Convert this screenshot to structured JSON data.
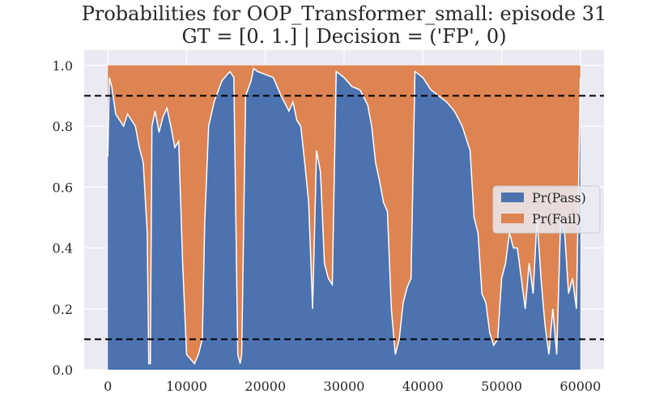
{
  "chart_data": {
    "type": "area",
    "title": "Probabilities for OOP_Transformer_small: episode 31",
    "subtitle": "GT = [0. 1.] | Decision = ('FP', 0)",
    "xlabel": "",
    "ylabel": "",
    "xlim": [
      -3000,
      63000
    ],
    "ylim": [
      0.0,
      1.05
    ],
    "xticks": [
      0,
      10000,
      20000,
      30000,
      40000,
      50000,
      60000
    ],
    "xtick_labels": [
      "0",
      "10000",
      "20000",
      "30000",
      "40000",
      "50000",
      "60000"
    ],
    "yticks": [
      0.0,
      0.2,
      0.4,
      0.6,
      0.8,
      1.0
    ],
    "ytick_labels": [
      "0.0",
      "0.2",
      "0.4",
      "0.6",
      "0.8",
      "1.0"
    ],
    "thresholds": [
      0.9,
      0.1
    ],
    "grid": true,
    "legend_position": "center-right",
    "stacked": true,
    "colors": {
      "pass": "#4c72b0",
      "fail": "#dd8452",
      "background": "#eaeaf2",
      "threshold": "#000000"
    },
    "series": [
      {
        "name": "Pr(Pass)",
        "x": [
          0,
          200,
          500,
          1000,
          1500,
          2000,
          2500,
          3000,
          3500,
          4000,
          4500,
          5000,
          5200,
          5400,
          5600,
          6000,
          6500,
          7000,
          7500,
          8000,
          8500,
          9000,
          9500,
          10000,
          11000,
          11500,
          12000,
          12300,
          12800,
          13500,
          14500,
          15500,
          16000,
          16500,
          16800,
          17000,
          17500,
          18200,
          18500,
          19000,
          20000,
          21000,
          22000,
          23000,
          23500,
          24000,
          24500,
          25000,
          25500,
          26000,
          26500,
          27000,
          27500,
          28000,
          28500,
          29000,
          30000,
          31000,
          32000,
          33000,
          33500,
          34000,
          34500,
          35000,
          35500,
          36000,
          36500,
          37000,
          37500,
          38000,
          38500,
          39000,
          40000,
          41000,
          42000,
          43000,
          44000,
          45000,
          46000,
          46500,
          47000,
          47500,
          48000,
          48500,
          49000,
          49500,
          50000,
          50500,
          51000,
          51500,
          52000,
          52500,
          53000,
          53500,
          54000,
          54500,
          55000,
          55500,
          56000,
          56500,
          57000,
          57500,
          58000,
          58500,
          59000,
          59500,
          60000
        ],
        "values": [
          0.7,
          0.96,
          0.93,
          0.84,
          0.82,
          0.8,
          0.84,
          0.82,
          0.8,
          0.73,
          0.68,
          0.45,
          0.02,
          0.02,
          0.8,
          0.85,
          0.78,
          0.83,
          0.86,
          0.8,
          0.73,
          0.75,
          0.35,
          0.05,
          0.02,
          0.05,
          0.1,
          0.48,
          0.8,
          0.88,
          0.95,
          0.98,
          0.96,
          0.05,
          0.02,
          0.05,
          0.9,
          0.95,
          0.99,
          0.98,
          0.97,
          0.96,
          0.9,
          0.85,
          0.88,
          0.82,
          0.8,
          0.68,
          0.55,
          0.2,
          0.72,
          0.65,
          0.35,
          0.3,
          0.28,
          0.98,
          0.96,
          0.93,
          0.92,
          0.87,
          0.8,
          0.68,
          0.62,
          0.55,
          0.52,
          0.2,
          0.05,
          0.1,
          0.22,
          0.27,
          0.3,
          0.98,
          0.96,
          0.92,
          0.9,
          0.88,
          0.85,
          0.8,
          0.72,
          0.5,
          0.45,
          0.25,
          0.22,
          0.12,
          0.08,
          0.1,
          0.3,
          0.35,
          0.45,
          0.4,
          0.4,
          0.3,
          0.2,
          0.35,
          0.25,
          0.5,
          0.3,
          0.15,
          0.05,
          0.2,
          0.05,
          0.5,
          0.45,
          0.25,
          0.3,
          0.2,
          0.96
        ]
      },
      {
        "name": "Pr(Fail)",
        "note": "complement of Pr(Pass); stacked to 1.0"
      }
    ]
  }
}
